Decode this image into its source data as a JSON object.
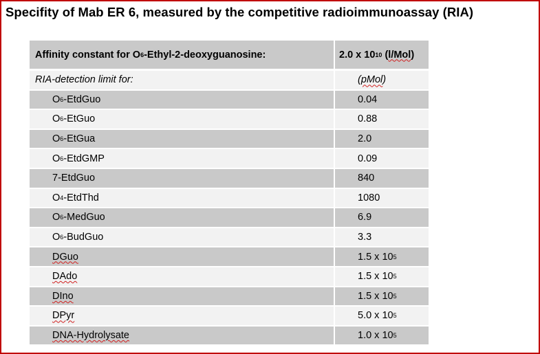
{
  "title": "Specifity of Mab ER 6, measured by the competitive radioimmunoassay (RIA)",
  "header": {
    "label_prefix": "Affinity constant for O",
    "label_sup": "6",
    "label_suffix": "-Ethyl-2-deoxyguanosine:",
    "value_base": "2.0 x 10",
    "value_exp": "10",
    "value_unit_open": " (",
    "value_unit": "l/Mol",
    "value_unit_close": ")"
  },
  "subheader": {
    "label": "RIA-detection limit for:",
    "unit_open": "(",
    "unit": "pMol",
    "unit_close": ")"
  },
  "rows": [
    {
      "pre": "O",
      "sup": "6",
      "post": "-EtdGuo",
      "value": "0.04",
      "shade": "dark"
    },
    {
      "pre": "O",
      "sup": "6",
      "post": "-EtGuo",
      "value": "0.88",
      "shade": "light"
    },
    {
      "pre": "O",
      "sup": "6",
      "post": "-EtGua",
      "value": "2.0",
      "shade": "dark"
    },
    {
      "pre": "O",
      "sup": "6",
      "post": "-EtdGMP",
      "value": "0.09",
      "shade": "light"
    },
    {
      "pre": "7-EtdGuo",
      "sup": "",
      "post": "",
      "value": "840",
      "shade": "dark"
    },
    {
      "pre": "O",
      "sup": "4",
      "post": "-EtdThd",
      "value": "1080",
      "shade": "light"
    },
    {
      "pre": "O",
      "sup": "6",
      "post": "-MedGuo",
      "value": "6.9",
      "shade": "dark"
    },
    {
      "pre": "O",
      "sup": "6",
      "post": "-BudGuo",
      "value": "3.3",
      "shade": "light"
    },
    {
      "label": "DGuo",
      "value_base": "1.5 x 10",
      "value_exp": "5",
      "shade": "dark"
    },
    {
      "label": "DAdo",
      "value_base": "1.5 x 10",
      "value_exp": "5",
      "shade": "light"
    },
    {
      "label": "DIno",
      "value_base": "1.5 x 10",
      "value_exp": "5",
      "shade": "dark"
    },
    {
      "label": "DPyr",
      "value_base": "5.0 x 10",
      "value_exp": "5",
      "shade": "light"
    },
    {
      "label": "DNA-Hydrolysate",
      "value_base": "1.0 x 10",
      "value_exp": "5",
      "shade": "dark"
    }
  ],
  "colors": {
    "frame": "#c00000",
    "row_dark": "#c9c9c9",
    "row_light": "#f2f2f2",
    "spell_underline": "#d02020"
  }
}
